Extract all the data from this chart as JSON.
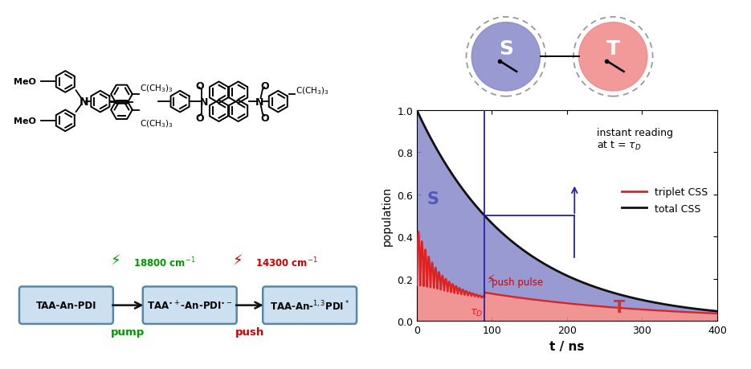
{
  "xlabel": "t / ns",
  "ylabel": "population",
  "xlim": [
    0,
    400
  ],
  "ylim": [
    0,
    1.0
  ],
  "tau_D": 90,
  "decay_tau": 130,
  "total_css_color": "#111111",
  "singlet_fill_color": "#8888cc",
  "triplet_fill_color": "#f08888",
  "triplet_line_color": "#dd2222",
  "vline_color": "#2222aa",
  "S_circle_color": "#8888cc",
  "T_circle_color": "#f08888",
  "background_color": "#ffffff",
  "legend_triplet_label": "triplet CSS",
  "legend_total_label": "total CSS",
  "xticks": [
    0,
    100,
    200,
    300,
    400
  ],
  "yticks": [
    0.0,
    0.2,
    0.4,
    0.6,
    0.8,
    1.0
  ],
  "pump_color": "#009900",
  "push_color": "#cc0000",
  "box_facecolor": "#cce0f0",
  "box_edgecolor": "#5588aa",
  "arrow_color": "#111111"
}
